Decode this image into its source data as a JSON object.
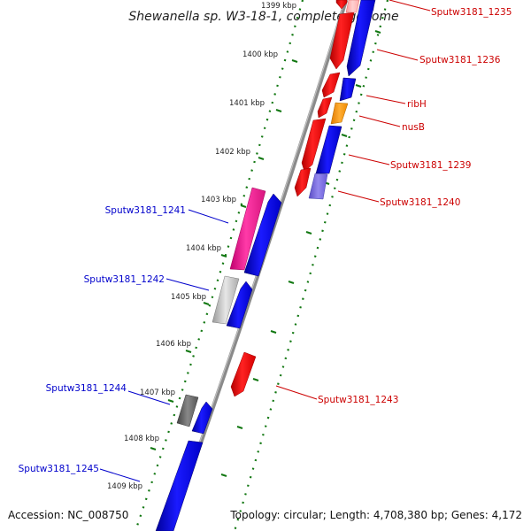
{
  "title": "Shewanella sp. W3-18-1, complete genome",
  "footer": {
    "accession": "Accession: NC_008750",
    "topology": "Topology: circular; Length: 4,708,380 bp; Genes: 4,172"
  },
  "scale_labels": [
    "1399 kbp",
    "1400 kbp",
    "1401 kbp",
    "1402 kbp",
    "1403 kbp",
    "1404 kbp",
    "1405 kbp",
    "1406 kbp",
    "1407 kbp",
    "1408 kbp",
    "1409 kbp"
  ],
  "genes": {
    "reverse_strand": [
      "Sputw3181_1235",
      "Sputw3181_1236",
      "ribH",
      "nusB",
      "Sputw3181_1239",
      "Sputw3181_1240",
      "Sputw3181_1243"
    ],
    "forward_strand": [
      "Sputw3181_1241",
      "Sputw3181_1242",
      "Sputw3181_1244",
      "Sputw3181_1245"
    ]
  },
  "colors": {
    "reverse_label": "#cc0000",
    "forward_label": "#0000cc",
    "red_gene": "#ff0000",
    "blue_gene": "#0000ee",
    "magenta_gene": "#ee1199",
    "orange_gene": "#ff9900",
    "purple_gene": "#7766dd",
    "grey_gene": "#666666",
    "light_grey_gene": "#bbbbbb",
    "backbone": "#888888",
    "tick": "#117711"
  }
}
